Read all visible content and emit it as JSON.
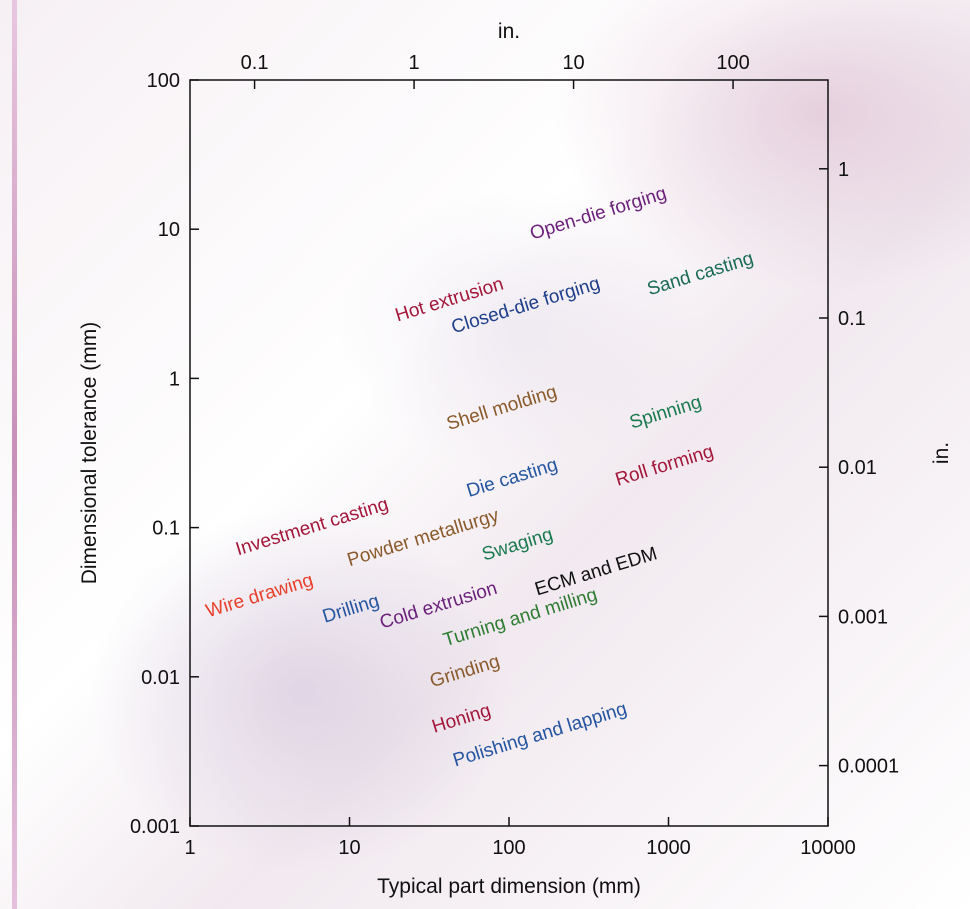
{
  "chart_data": {
    "type": "scatter",
    "title": "",
    "xlabel": "Typical part dimension (mm)",
    "ylabel": "Dimensional tolerance (mm)",
    "x2label": "in.",
    "y2label": "in.",
    "xscale": "log",
    "yscale": "log",
    "xlim": [
      1,
      10000
    ],
    "ylim": [
      0.001,
      100
    ],
    "x_ticks": [
      {
        "value": 1,
        "label": "1"
      },
      {
        "value": 10,
        "label": "10"
      },
      {
        "value": 100,
        "label": "100"
      },
      {
        "value": 1000,
        "label": "1000"
      },
      {
        "value": 10000,
        "label": "10000"
      }
    ],
    "y_ticks": [
      {
        "value": 0.001,
        "label": "0.001"
      },
      {
        "value": 0.01,
        "label": "0.01"
      },
      {
        "value": 0.1,
        "label": "0.1"
      },
      {
        "value": 1,
        "label": "1"
      },
      {
        "value": 10,
        "label": "10"
      },
      {
        "value": 100,
        "label": "100"
      }
    ],
    "x2_ticks": [
      {
        "value": 2.54,
        "label": "0.1"
      },
      {
        "value": 25.4,
        "label": "1"
      },
      {
        "value": 254,
        "label": "10"
      },
      {
        "value": 2540,
        "label": "100"
      }
    ],
    "y2_ticks": [
      {
        "value": 0.00254,
        "label": "0.0001"
      },
      {
        "value": 0.0254,
        "label": "0.001"
      },
      {
        "value": 0.254,
        "label": "0.01"
      },
      {
        "value": 2.54,
        "label": "0.1"
      },
      {
        "value": 25.4,
        "label": "1"
      }
    ],
    "grid": false,
    "processes": [
      {
        "name": "Open-die forging",
        "x": 140,
        "y": 8.5,
        "color": "#6a1f7a"
      },
      {
        "name": "Sand casting",
        "x": 760,
        "y": 3.6,
        "color": "#1a6b55"
      },
      {
        "name": "Hot extrusion",
        "x": 20,
        "y": 2.4,
        "color": "#a3173a"
      },
      {
        "name": "Closed-die forging",
        "x": 45,
        "y": 2.0,
        "color": "#1e3f8a"
      },
      {
        "name": "Shell molding",
        "x": 42,
        "y": 0.45,
        "color": "#8a5a2b"
      },
      {
        "name": "Spinning",
        "x": 590,
        "y": 0.46,
        "color": "#1a7a50"
      },
      {
        "name": "Roll forming",
        "x": 480,
        "y": 0.19,
        "color": "#a3173a"
      },
      {
        "name": "Die casting",
        "x": 56,
        "y": 0.16,
        "color": "#2455a0"
      },
      {
        "name": "Investment casting",
        "x": 2.0,
        "y": 0.065,
        "color": "#a3173a"
      },
      {
        "name": "Powder metallurgy",
        "x": 10,
        "y": 0.055,
        "color": "#8a5a2b"
      },
      {
        "name": "Swaging",
        "x": 70,
        "y": 0.06,
        "color": "#1a7a50"
      },
      {
        "name": "Wire drawing",
        "x": 1.3,
        "y": 0.025,
        "color": "#e8402a"
      },
      {
        "name": "Drilling",
        "x": 7,
        "y": 0.023,
        "color": "#2455a0"
      },
      {
        "name": "Cold extrusion",
        "x": 16,
        "y": 0.021,
        "color": "#6a1f7a"
      },
      {
        "name": "ECM and EDM",
        "x": 150,
        "y": 0.035,
        "color": "#111111"
      },
      {
        "name": "Turning and milling",
        "x": 40,
        "y": 0.016,
        "color": "#2e7d32"
      },
      {
        "name": "Grinding",
        "x": 33,
        "y": 0.0085,
        "color": "#8a5a2b"
      },
      {
        "name": "Honing",
        "x": 34,
        "y": 0.0042,
        "color": "#a3173a"
      },
      {
        "name": "Polishing and lapping",
        "x": 46,
        "y": 0.0025,
        "color": "#2455a0"
      }
    ]
  }
}
